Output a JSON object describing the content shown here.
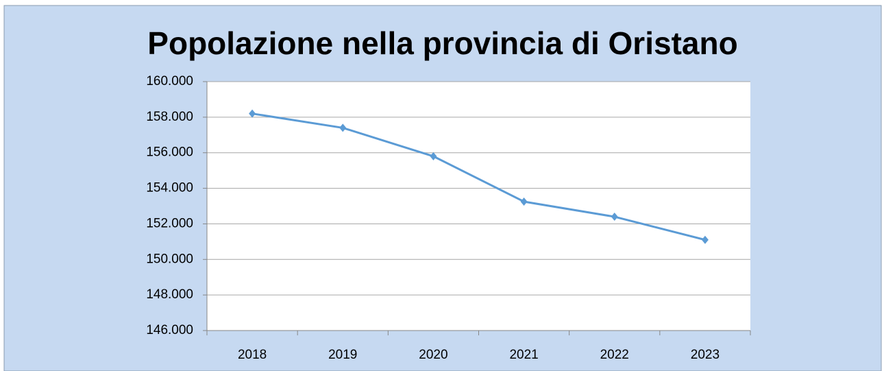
{
  "chart_data": {
    "type": "line",
    "title": "Popolazione nella provincia di Oristano",
    "categories": [
      "2018",
      "2019",
      "2020",
      "2021",
      "2022",
      "2023"
    ],
    "series": [
      {
        "name": "Popolazione",
        "color": "#5b9bd5",
        "values": [
          158200,
          157400,
          155800,
          153250,
          152400,
          151100
        ]
      }
    ],
    "ylim": [
      146000,
      160000
    ],
    "yticks": [
      {
        "value": 146000,
        "label": "146.000"
      },
      {
        "value": 148000,
        "label": "148.000"
      },
      {
        "value": 150000,
        "label": "150.000"
      },
      {
        "value": 152000,
        "label": "152.000"
      },
      {
        "value": 154000,
        "label": "154.000"
      },
      {
        "value": 156000,
        "label": "156.000"
      },
      {
        "value": 158000,
        "label": "158.000"
      },
      {
        "value": 160000,
        "label": "160.000"
      }
    ],
    "grid": true
  }
}
